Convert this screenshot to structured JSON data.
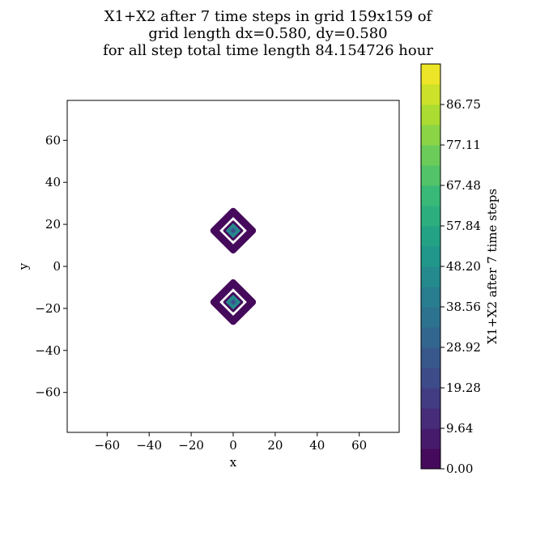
{
  "chart_data": {
    "type": "heatmap",
    "title_lines": [
      "X1+X2 after 7 time steps in grid 159x159 of",
      "grid length dx=0.580, dy=0.580",
      "for all step total time length 84.154726 hour"
    ],
    "xlabel": "x",
    "ylabel": "y",
    "xlim": [
      -79,
      79
    ],
    "ylim": [
      -79,
      79
    ],
    "xticks": [
      -60,
      -40,
      -20,
      0,
      20,
      40,
      60
    ],
    "yticks": [
      -60,
      -40,
      -20,
      0,
      20,
      40,
      60
    ],
    "xtick_labels": [
      "−60",
      "−40",
      "−20",
      "0",
      "20",
      "40",
      "60"
    ],
    "ytick_labels": [
      "−60",
      "−40",
      "−20",
      "0",
      "20",
      "40",
      "60"
    ],
    "colorbar": {
      "label": "X1+X2 after 7 time steps",
      "range": [
        0,
        96.4
      ],
      "ticks": [
        0.0,
        9.64,
        19.28,
        28.92,
        38.56,
        48.2,
        57.84,
        67.48,
        77.11,
        86.75
      ],
      "tick_labels": [
        "0.00",
        "9.64",
        "19.28",
        "28.92",
        "38.56",
        "48.20",
        "57.84",
        "67.48",
        "77.11",
        "86.75"
      ],
      "n_levels": 20,
      "colormap": "viridis"
    },
    "blobs": [
      {
        "center": [
          0,
          17
        ],
        "outer_radius": 11.5,
        "inner_radius": 6.5,
        "ring_value": 3,
        "core_value": 45,
        "core_spot_value": 35
      },
      {
        "center": [
          0,
          -17
        ],
        "outer_radius": 11.5,
        "inner_radius": 6.5,
        "ring_value": 3,
        "core_value": 45,
        "core_spot_value": 35
      }
    ],
    "grid": false,
    "legend": "none"
  }
}
